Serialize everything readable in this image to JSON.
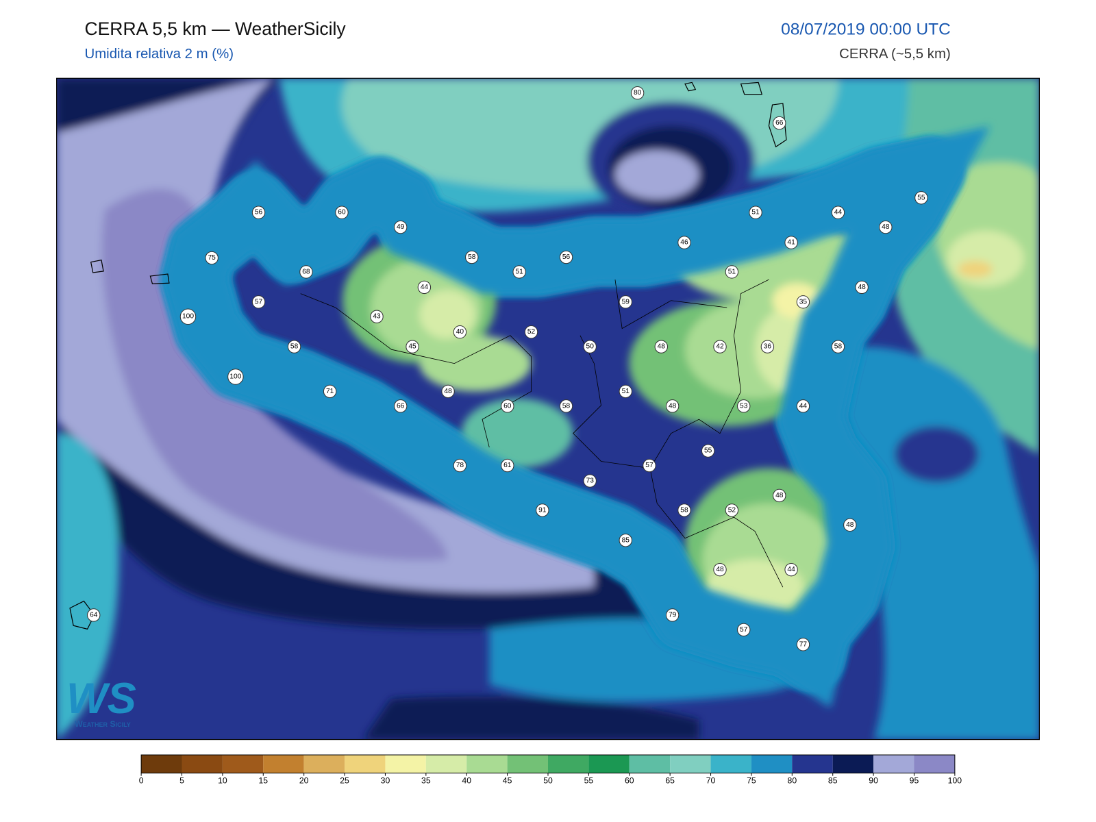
{
  "header": {
    "title": "CERRA 5,5 km — WeatherSicily",
    "subtitle": "Umidita relativa 2 m (%)",
    "datetime": "08/07/2019 00:00 UTC",
    "model": "CERRA (~5,5 km)"
  },
  "stations": [
    80,
    66,
    56,
    60,
    49,
    51,
    44,
    55,
    48,
    75,
    68,
    58,
    56,
    46,
    41,
    51,
    51,
    44,
    48,
    57,
    59,
    35,
    100,
    43,
    40,
    52,
    58,
    45,
    50,
    48,
    42,
    36,
    58,
    100,
    71,
    66,
    48,
    60,
    58,
    51,
    48,
    53,
    44,
    55,
    78,
    61,
    57,
    73,
    48,
    91,
    58,
    52,
    48,
    85,
    48,
    44,
    64,
    79,
    57,
    77
  ],
  "colorbar": {
    "ticks": [
      0,
      5,
      10,
      15,
      20,
      25,
      30,
      35,
      40,
      45,
      50,
      55,
      60,
      65,
      70,
      75,
      80,
      85,
      90,
      95,
      100
    ],
    "colors": [
      "#6e3b0c",
      "#8a4a12",
      "#9f5a1b",
      "#c2802f",
      "#dcaf5c",
      "#efd37b",
      "#f4f3a6",
      "#d6eca8",
      "#a9db93",
      "#73c176",
      "#3fa962",
      "#1b9853",
      "#5ebea4",
      "#80cfc0",
      "#3ab3c9",
      "#1f8fc4",
      "#25358f",
      "#0b1b55",
      "#a3a8d8",
      "#8b88c6"
    ]
  },
  "logo": {
    "mark": "WS",
    "text": "Weather Sicily"
  }
}
